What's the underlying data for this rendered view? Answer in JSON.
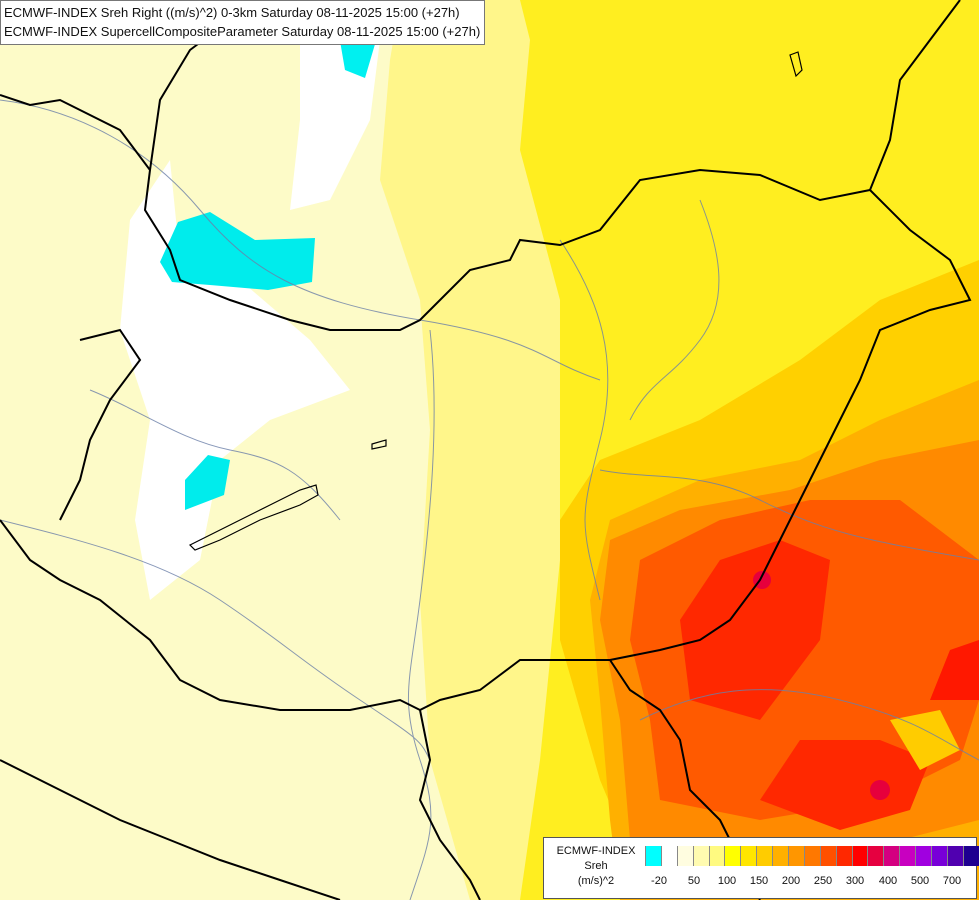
{
  "titles": {
    "line1": "ECMWF-INDEX Sreh Right ((m/s)^2) 0-3km Saturday 08-11-2025 15:00 (+27h)",
    "line2": "ECMWF-INDEX SupercellCompositeParameter Saturday 08-11-2025 15:00 (+27h)"
  },
  "legend": {
    "model": "ECMWF-INDEX",
    "variable": "Sreh",
    "unit": "(m/s)^2",
    "colors": [
      "#00ffff",
      "#ffffff",
      "#fffde0",
      "#fffbb0",
      "#fffa80",
      "#ffff00",
      "#ffe600",
      "#ffcc00",
      "#ffb000",
      "#ff9600",
      "#ff7800",
      "#ff5000",
      "#ff2800",
      "#ff0000",
      "#e60040",
      "#d40080",
      "#c800c0",
      "#a000e0",
      "#7800d8",
      "#5000b0",
      "#1e0090"
    ],
    "ticks": [
      "-20",
      "50",
      "100",
      "150",
      "200",
      "250",
      "300",
      "400",
      "500",
      "700"
    ]
  }
}
